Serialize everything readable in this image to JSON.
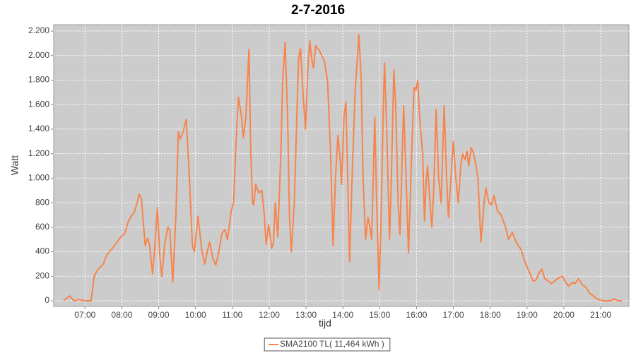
{
  "chart_data": {
    "type": "line",
    "title": "2-7-2016",
    "x_label": "tijd",
    "y_label": "Watt",
    "x": [
      "06:25",
      "06:35",
      "06:42",
      "06:50",
      "07:00",
      "07:10",
      "07:15",
      "07:20",
      "07:30",
      "07:35",
      "07:45",
      "07:55",
      "08:00",
      "08:05",
      "08:10",
      "08:15",
      "08:20",
      "08:25",
      "08:28",
      "08:32",
      "08:38",
      "08:42",
      "08:45",
      "08:50",
      "08:53",
      "08:58",
      "09:02",
      "09:05",
      "09:10",
      "09:15",
      "09:18",
      "09:23",
      "09:28",
      "09:32",
      "09:35",
      "09:40",
      "09:45",
      "09:50",
      "09:55",
      "09:58",
      "10:04",
      "10:10",
      "10:15",
      "10:20",
      "10:23",
      "10:28",
      "10:33",
      "10:38",
      "10:43",
      "10:48",
      "10:52",
      "10:58",
      "11:02",
      "11:07",
      "11:10",
      "11:15",
      "11:18",
      "11:22",
      "11:27",
      "11:30",
      "11:33",
      "11:35",
      "11:38",
      "11:43",
      "11:48",
      "11:52",
      "11:55",
      "11:59",
      "12:04",
      "12:07",
      "12:10",
      "12:14",
      "12:19",
      "12:22",
      "12:26",
      "12:30",
      "12:33",
      "12:36",
      "12:41",
      "12:45",
      "12:48",
      "12:51",
      "12:55",
      "12:59",
      "13:03",
      "13:06",
      "13:10",
      "13:12",
      "13:16",
      "13:22",
      "13:30",
      "13:35",
      "13:40",
      "13:44",
      "13:48",
      "13:52",
      "13:55",
      "13:58",
      "14:02",
      "14:05",
      "14:08",
      "14:11",
      "14:15",
      "14:20",
      "14:26",
      "14:30",
      "14:33",
      "14:37",
      "14:41",
      "14:44",
      "14:47",
      "14:52",
      "14:55",
      "14:59",
      "15:02",
      "15:06",
      "15:08",
      "15:12",
      "15:16",
      "15:19",
      "15:23",
      "15:26",
      "15:30",
      "15:33",
      "15:39",
      "15:43",
      "15:47",
      "15:52",
      "15:56",
      "15:59",
      "16:02",
      "16:05",
      "16:10",
      "16:13",
      "16:16",
      "16:18",
      "16:22",
      "16:25",
      "16:28",
      "16:32",
      "16:36",
      "16:40",
      "16:45",
      "16:49",
      "16:52",
      "16:56",
      "17:00",
      "17:04",
      "17:08",
      "17:12",
      "17:15",
      "17:19",
      "17:22",
      "17:25",
      "17:29",
      "17:33",
      "17:37",
      "17:40",
      "17:45",
      "17:50",
      "17:53",
      "17:58",
      "18:02",
      "18:06",
      "18:12",
      "18:18",
      "18:25",
      "18:30",
      "18:36",
      "18:42",
      "18:50",
      "18:58",
      "19:05",
      "19:10",
      "19:15",
      "19:20",
      "19:24",
      "19:29",
      "19:35",
      "19:40",
      "19:47",
      "19:53",
      "19:58",
      "20:03",
      "20:08",
      "20:14",
      "20:18",
      "20:24",
      "20:30",
      "20:36",
      "20:42",
      "20:48",
      "20:55",
      "21:05",
      "21:15",
      "21:22",
      "21:28",
      "21:35"
    ],
    "series": [
      {
        "name": "SMA2100 TL( 11,464 kWh )",
        "color": "#f7844c",
        "values": [
          0,
          40,
          0,
          10,
          0,
          0,
          200,
          250,
          300,
          370,
          430,
          500,
          530,
          550,
          640,
          690,
          720,
          800,
          870,
          830,
          450,
          510,
          460,
          220,
          400,
          760,
          350,
          200,
          470,
          600,
          580,
          150,
          700,
          1380,
          1320,
          1380,
          1480,
          1000,
          450,
          400,
          690,
          420,
          300,
          420,
          480,
          350,
          290,
          400,
          550,
          580,
          500,
          730,
          800,
          1400,
          1660,
          1500,
          1330,
          1500,
          2050,
          1200,
          800,
          780,
          950,
          880,
          900,
          700,
          460,
          620,
          430,
          470,
          800,
          520,
          1200,
          1800,
          2110,
          1500,
          700,
          400,
          800,
          1500,
          1980,
          2060,
          1700,
          1400,
          1900,
          2120,
          1950,
          1900,
          2080,
          2040,
          1950,
          1800,
          1200,
          450,
          1000,
          1350,
          1200,
          950,
          1520,
          1620,
          1000,
          320,
          1000,
          1700,
          2170,
          1800,
          1000,
          500,
          680,
          600,
          500,
          1500,
          800,
          90,
          600,
          1600,
          1940,
          1300,
          500,
          1000,
          1880,
          1600,
          800,
          540,
          1590,
          1000,
          390,
          1200,
          1740,
          1720,
          1800,
          1500,
          1200,
          650,
          1000,
          1100,
          800,
          600,
          900,
          1560,
          1000,
          800,
          1590,
          1000,
          680,
          1000,
          1300,
          1000,
          800,
          1100,
          1200,
          1150,
          1220,
          1100,
          1250,
          1200,
          1100,
          1000,
          480,
          800,
          920,
          800,
          780,
          860,
          730,
          700,
          600,
          500,
          560,
          480,
          420,
          300,
          220,
          160,
          170,
          230,
          260,
          180,
          160,
          140,
          170,
          190,
          200,
          150,
          120,
          150,
          140,
          180,
          130,
          110,
          60,
          40,
          10,
          0,
          0,
          15,
          0,
          0
        ]
      }
    ],
    "xlim": [
      "06:09",
      "21:46"
    ],
    "xticks": [
      {
        "value": "07:00",
        "label": "07:00"
      },
      {
        "value": "08:00",
        "label": "08:00"
      },
      {
        "value": "09:00",
        "label": "09:00"
      },
      {
        "value": "10:00",
        "label": "10:00"
      },
      {
        "value": "11:00",
        "label": "11:00"
      },
      {
        "value": "12:00",
        "label": "12:00"
      },
      {
        "value": "13:00",
        "label": "13:00"
      },
      {
        "value": "14:00",
        "label": "14:00"
      },
      {
        "value": "15:00",
        "label": "15:00"
      },
      {
        "value": "16:00",
        "label": "16:00"
      },
      {
        "value": "17:00",
        "label": "17:00"
      },
      {
        "value": "18:00",
        "label": "18:00"
      },
      {
        "value": "19:00",
        "label": "19:00"
      },
      {
        "value": "20:00",
        "label": "20:00"
      },
      {
        "value": "21:00",
        "label": "21:00"
      }
    ],
    "ylim": [
      -46,
      2252
    ],
    "yticks": [
      0,
      200,
      400,
      600,
      800,
      {
        "value": 1000,
        "label": "1.000"
      },
      {
        "value": 1200,
        "label": "1.200"
      },
      {
        "value": 1400,
        "label": "1.400"
      },
      {
        "value": 1600,
        "label": "1.600"
      },
      {
        "value": 1800,
        "label": "1.800"
      },
      {
        "value": 2000,
        "label": "2.000"
      },
      {
        "value": 2200,
        "label": "2.200"
      }
    ],
    "grid": true,
    "legend": "bottom"
  }
}
